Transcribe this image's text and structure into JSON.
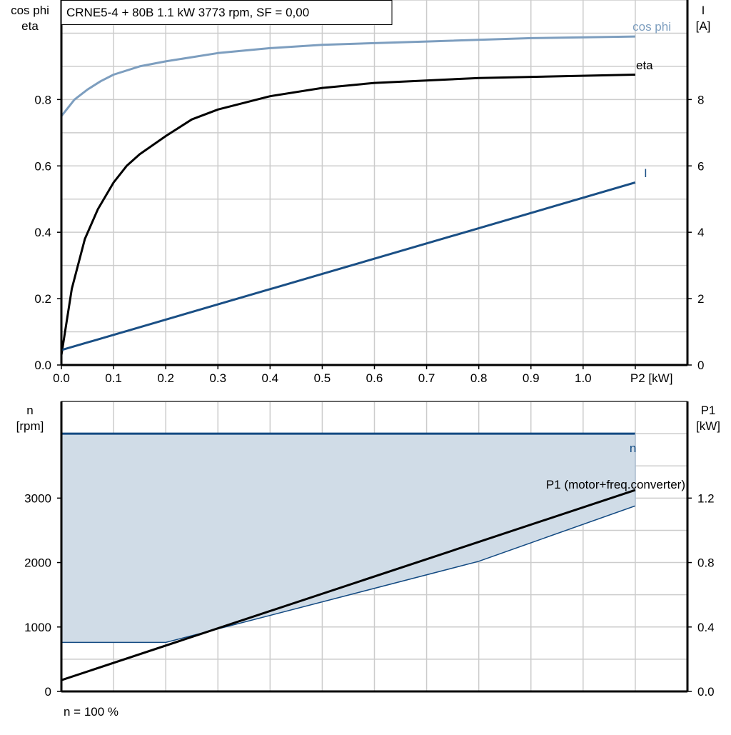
{
  "title": "CRNE5-4 + 80B   1.1 kW   3773 rpm, SF = 0,00",
  "footer": "n = 100 %",
  "colors": {
    "cos_phi": "#7d9ebf",
    "eta": "#000000",
    "I": "#1a4f85",
    "n": "#134a82",
    "fill": "#d0dce7",
    "P1": "#000000",
    "grid": "#cccccc"
  },
  "chart_data": [
    {
      "type": "line",
      "xlabel": "P2 [kW]",
      "xlim": [
        0,
        1.2
      ],
      "x_ticks": [
        "0.0",
        "0.1",
        "0.2",
        "0.3",
        "0.4",
        "0.5",
        "0.6",
        "0.7",
        "0.8",
        "0.9",
        "1.0"
      ],
      "ylabel_left": [
        "cos phi",
        "eta"
      ],
      "ylim_left": [
        0,
        1.1
      ],
      "y_ticks_left": [
        "0.0",
        "0.2",
        "0.4",
        "0.6",
        "0.8"
      ],
      "ylabel_right": [
        "I",
        "[A]"
      ],
      "ylim_right": [
        0,
        11
      ],
      "y_ticks_right": [
        "0",
        "2",
        "4",
        "6",
        "8"
      ],
      "grid": true,
      "series": [
        {
          "name": "cos phi",
          "axis": "left",
          "x": [
            0,
            0.025,
            0.05,
            0.075,
            0.1,
            0.15,
            0.2,
            0.3,
            0.4,
            0.5,
            0.7,
            0.9,
            1.1
          ],
          "y": [
            0.75,
            0.8,
            0.83,
            0.855,
            0.875,
            0.9,
            0.915,
            0.94,
            0.955,
            0.965,
            0.975,
            0.985,
            0.99
          ]
        },
        {
          "name": "eta",
          "axis": "left",
          "x": [
            0,
            0.02,
            0.045,
            0.07,
            0.1,
            0.125,
            0.15,
            0.2,
            0.25,
            0.3,
            0.4,
            0.5,
            0.6,
            0.8,
            1.1
          ],
          "y": [
            0.03,
            0.23,
            0.38,
            0.47,
            0.55,
            0.6,
            0.635,
            0.69,
            0.74,
            0.77,
            0.81,
            0.835,
            0.85,
            0.865,
            0.875
          ]
        },
        {
          "name": "I",
          "axis": "right",
          "x": [
            0,
            1.1
          ],
          "y": [
            0.45,
            5.5
          ]
        }
      ]
    },
    {
      "type": "area",
      "xlim": [
        0,
        1.2
      ],
      "ylabel_left": [
        "n",
        "[rpm]"
      ],
      "ylim_left": [
        0,
        4500
      ],
      "y_ticks_left": [
        "0",
        "1000",
        "2000",
        "3000"
      ],
      "ylabel_right": [
        "P1",
        "[kW]"
      ],
      "ylim_right": [
        0,
        1.8
      ],
      "y_ticks_right": [
        "0.0",
        "0.4",
        "0.8",
        "1.2"
      ],
      "grid": true,
      "series": [
        {
          "name": "n",
          "axis": "left",
          "upper": {
            "x": [
              0,
              1.1
            ],
            "y": [
              4000,
              4000
            ]
          },
          "lower": {
            "x": [
              0,
              0.2,
              0.8,
              1.1
            ],
            "y": [
              760,
              760,
              2020,
              2880
            ]
          }
        },
        {
          "name": "P1 (motor+freq.converter)",
          "axis": "right",
          "x": [
            0,
            1.1
          ],
          "y": [
            0.07,
            1.25
          ]
        }
      ]
    }
  ]
}
